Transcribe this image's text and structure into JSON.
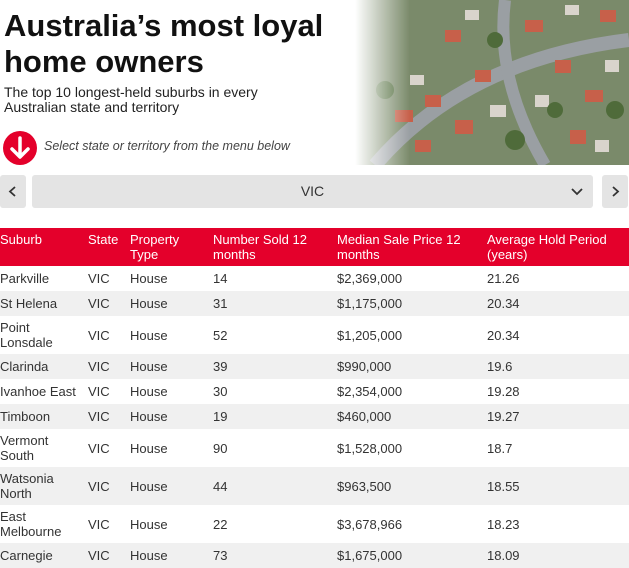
{
  "header": {
    "title": "Australia’s most loyal home owners",
    "subtitle": "The top 10 longest-held suburbs in every Australian state and territory",
    "instruction": "Select state or territory from the menu below"
  },
  "selector": {
    "value": "VIC"
  },
  "table": {
    "columns": [
      "Suburb",
      "State",
      "Property Type",
      "Number Sold 12 months",
      "Median Sale Price 12 months",
      "Average Hold Period (years)"
    ],
    "rows": [
      [
        "Parkville",
        "VIC",
        "House",
        14,
        "$2,369,000",
        21.26
      ],
      [
        "St Helena",
        "VIC",
        "House",
        31,
        "$1,175,000",
        20.34
      ],
      [
        "Point Lonsdale",
        "VIC",
        "House",
        52,
        "$1,205,000",
        20.34
      ],
      [
        "Clarinda",
        "VIC",
        "House",
        39,
        "$990,000",
        19.6
      ],
      [
        "Ivanhoe East",
        "VIC",
        "House",
        30,
        "$2,354,000",
        19.28
      ],
      [
        "Timboon",
        "VIC",
        "House",
        19,
        "$460,000",
        19.27
      ],
      [
        "Vermont South",
        "VIC",
        "House",
        90,
        "$1,528,000",
        18.7
      ],
      [
        "Watsonia North",
        "VIC",
        "House",
        44,
        "$963,500",
        18.55
      ],
      [
        "East Melbourne",
        "VIC",
        "House",
        22,
        "$3,678,966",
        18.23
      ],
      [
        "Carnegie",
        "VIC",
        "House",
        73,
        "$1,675,000",
        18.09
      ]
    ]
  }
}
